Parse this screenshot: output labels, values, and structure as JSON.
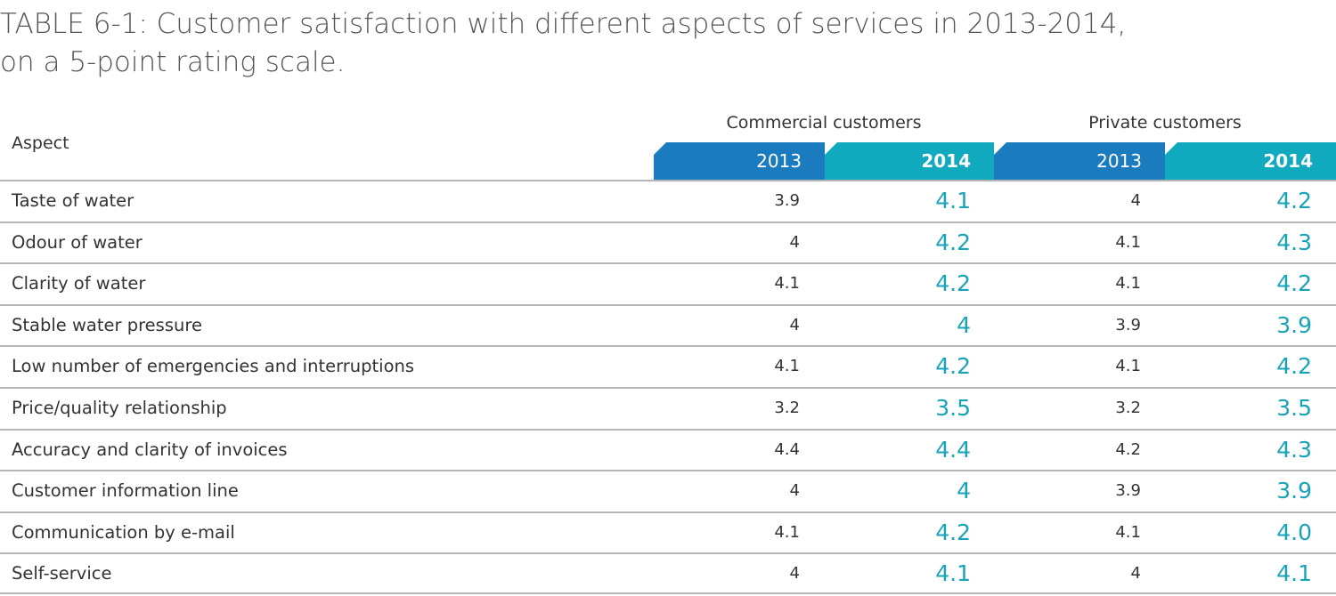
{
  "title": {
    "line1": "TABLE 6-1: Customer satisfaction with different aspects of services in 2013-2014,",
    "line2": "on a 5-point rating scale."
  },
  "header": {
    "aspect": "Aspect",
    "commercial": "Commercial customers",
    "private": "Private customers",
    "year_2013": "2013",
    "year_2014": "2014"
  },
  "rows": [
    {
      "aspect": "Taste of water",
      "c2013": "3.9",
      "c2014": "4.1",
      "p2013": "4",
      "p2014": "4.2"
    },
    {
      "aspect": "Odour of water",
      "c2013": "4",
      "c2014": "4.2",
      "p2013": "4.1",
      "p2014": "4.3"
    },
    {
      "aspect": "Clarity of water",
      "c2013": "4.1",
      "c2014": "4.2",
      "p2013": "4.1",
      "p2014": "4.2"
    },
    {
      "aspect": "Stable water pressure",
      "c2013": "4",
      "c2014": "4",
      "p2013": "3.9",
      "p2014": "3.9"
    },
    {
      "aspect": "Low number of emergencies and interruptions",
      "c2013": "4.1",
      "c2014": "4.2",
      "p2013": "4.1",
      "p2014": "4.2"
    },
    {
      "aspect": "Price/quality relationship",
      "c2013": "3.2",
      "c2014": "3.5",
      "p2013": "3.2",
      "p2014": "3.5"
    },
    {
      "aspect": "Accuracy and clarity of invoices",
      "c2013": "4.4",
      "c2014": "4.4",
      "p2013": "4.2",
      "p2014": "4.3"
    },
    {
      "aspect": "Customer information line",
      "c2013": "4",
      "c2014": "4",
      "p2013": "3.9",
      "p2014": "3.9"
    },
    {
      "aspect": "Communication by e-mail",
      "c2013": "4.1",
      "c2014": "4.2",
      "p2013": "4.1",
      "p2014": "4.0"
    },
    {
      "aspect": "Self-service",
      "c2013": "4",
      "c2014": "4.1",
      "p2013": "4",
      "p2014": "4.1"
    }
  ],
  "colors": {
    "header_2013": "#1a7bbf",
    "header_2014": "#11a9bd",
    "value_2014": "#17a3b8"
  }
}
